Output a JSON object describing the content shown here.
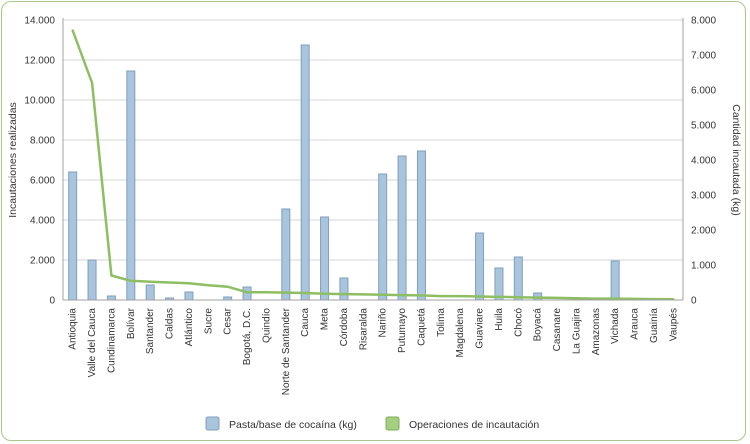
{
  "chart_data": {
    "type": "bar",
    "categories": [
      "Antioquia",
      "Valle del Cauca",
      "Cundinamarca",
      "Bolívar",
      "Santander",
      "Caldas",
      "Atlántico",
      "Sucre",
      "Cesar",
      "Bogotá, D.C.",
      "Quindío",
      "Norte de Santander",
      "Cauca",
      "Meta",
      "Córdoba",
      "Risaralda",
      "Nariño",
      "Putumayo",
      "Caquetá",
      "Tolima",
      "Magdalena",
      "Guaviare",
      "Huila",
      "Chocó",
      "Boyacá",
      "Casanare",
      "La Guajira",
      "Amazonas",
      "Vichada",
      "Arauca",
      "Guainía",
      "Vaupés"
    ],
    "series": [
      {
        "name": "Pasta/base de cocaína (kg)",
        "axis": "left",
        "kind": "bar",
        "color": "#a9c4dd",
        "values": [
          6400,
          2000,
          200,
          11450,
          750,
          100,
          400,
          0,
          150,
          650,
          0,
          4550,
          12750,
          4150,
          1100,
          0,
          6300,
          7200,
          7450,
          0,
          0,
          3350,
          1600,
          2150,
          350,
          0,
          0,
          0,
          1950,
          0,
          0,
          0
        ]
      },
      {
        "name": "Operaciones de incautación",
        "axis": "right",
        "kind": "line",
        "color": "#8dbf62",
        "values": [
          7700,
          6200,
          700,
          550,
          520,
          500,
          480,
          420,
          380,
          220,
          220,
          210,
          200,
          180,
          170,
          160,
          150,
          140,
          130,
          110,
          110,
          100,
          90,
          80,
          70,
          60,
          50,
          40,
          40,
          30,
          25,
          20
        ]
      }
    ],
    "y_left": {
      "label": "Incautaciones realizadas",
      "min": 0,
      "max": 14000,
      "ticks": [
        "0",
        "2.000",
        "4.000",
        "6.000",
        "8.000",
        "10.000",
        "12.000",
        "14.000"
      ]
    },
    "y_right": {
      "label": "Cantidad incautada (kg)",
      "min": 0,
      "max": 8000,
      "ticks": [
        "0",
        "1.000",
        "2.000",
        "3.000",
        "4.000",
        "5.000",
        "6.000",
        "7.000",
        "8.000"
      ]
    },
    "grid": true,
    "legend_placement": "bottom"
  },
  "legend": {
    "bar_label": "Pasta/base de cocaína (kg)",
    "line_label": "Operaciones de incautación"
  }
}
